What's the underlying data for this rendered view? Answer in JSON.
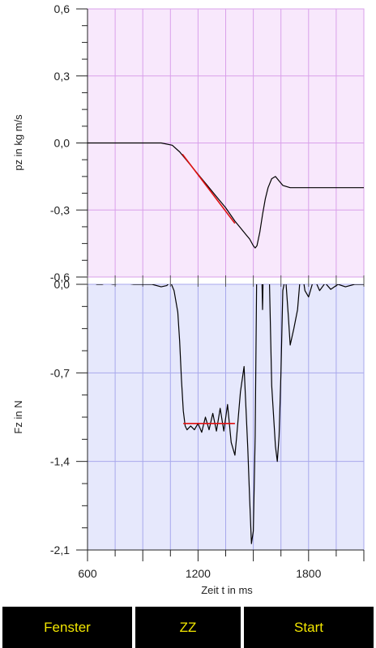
{
  "chart_data": [
    {
      "type": "line",
      "ylabel": "pz in kg m/s",
      "ylim": [
        -0.6,
        0.6
      ],
      "yticks": [
        "0,6",
        "0,3",
        "0,0",
        "-0,3",
        "-0,6"
      ],
      "background": "#f8e8fc",
      "grid_color": "#d9a0ea",
      "series": [
        {
          "color": "#000000",
          "x": [
            600,
            700,
            800,
            900,
            1000,
            1060,
            1100,
            1130,
            1180,
            1250,
            1300,
            1350,
            1400,
            1430,
            1460,
            1480,
            1500,
            1510,
            1520,
            1535,
            1550,
            1565,
            1580,
            1600,
            1620,
            1640,
            1660,
            1680,
            1700,
            1750,
            1800,
            1900,
            2000,
            2100
          ],
          "y": [
            0.0,
            0.0,
            0.0,
            0.0,
            0.0,
            -0.01,
            -0.04,
            -0.07,
            -0.12,
            -0.19,
            -0.24,
            -0.29,
            -0.35,
            -0.38,
            -0.41,
            -0.43,
            -0.46,
            -0.47,
            -0.46,
            -0.4,
            -0.32,
            -0.25,
            -0.2,
            -0.16,
            -0.15,
            -0.17,
            -0.19,
            -0.195,
            -0.2,
            -0.2,
            -0.2,
            -0.2,
            -0.2,
            -0.2
          ]
        },
        {
          "color": "#e01010",
          "x": [
            1115,
            1400
          ],
          "y": [
            -0.05,
            -0.36
          ]
        }
      ]
    },
    {
      "type": "line",
      "ylabel": "Fz in N",
      "xlabel": "Zeit t in ms",
      "ylim": [
        -2.1,
        0.0
      ],
      "xlim": [
        600,
        2100
      ],
      "yticks": [
        "0,0",
        "-0,7",
        "-1,4",
        "-2,1"
      ],
      "xticks": [
        {
          "value": 600,
          "label": "600"
        },
        {
          "value": 1200,
          "label": "1200"
        },
        {
          "value": 1800,
          "label": "1800"
        }
      ],
      "background": "#e6e8fc",
      "grid_color": "#a8a8ec",
      "series": [
        {
          "color": "#000000",
          "x": [
            600,
            620,
            650,
            680,
            700,
            740,
            800,
            850,
            900,
            950,
            1000,
            1030,
            1050,
            1070,
            1090,
            1100,
            1110,
            1120,
            1130,
            1140,
            1160,
            1180,
            1200,
            1220,
            1240,
            1260,
            1280,
            1300,
            1320,
            1340,
            1360,
            1380,
            1400,
            1410,
            1430,
            1450,
            1470,
            1480,
            1490,
            1500,
            1510,
            1520,
            1530,
            1540,
            1550,
            1560,
            1570,
            1585,
            1600,
            1620,
            1630,
            1640,
            1650,
            1660,
            1675,
            1690,
            1700,
            1720,
            1740,
            1760,
            1780,
            1800,
            1830,
            1860,
            1890,
            1920,
            1960,
            2000,
            2050,
            2100
          ],
          "y": [
            0.0,
            0.02,
            0.0,
            0.0,
            0.01,
            0.0,
            0.01,
            0.0,
            0.0,
            0.0,
            -0.02,
            -0.01,
            0.02,
            -0.05,
            -0.22,
            -0.45,
            -0.75,
            -1.0,
            -1.12,
            -1.15,
            -1.12,
            -1.15,
            -1.1,
            -1.17,
            -1.05,
            -1.15,
            -1.02,
            -1.16,
            -0.98,
            -1.16,
            -0.95,
            -1.25,
            -1.35,
            -1.2,
            -0.85,
            -0.65,
            -1.3,
            -1.7,
            -2.05,
            -1.95,
            -1.2,
            0.3,
            0.8,
            0.5,
            -0.2,
            0.6,
            0.9,
            0.2,
            -0.8,
            -1.28,
            -1.4,
            -1.2,
            -0.7,
            -0.05,
            0.06,
            -0.25,
            -0.48,
            -0.35,
            -0.2,
            0.15,
            -0.05,
            -0.1,
            0.05,
            -0.05,
            0.01,
            -0.04,
            0.0,
            -0.02,
            0.0,
            0.0
          ]
        },
        {
          "color": "#e01010",
          "x": [
            1120,
            1400
          ],
          "y": [
            -1.1,
            -1.1
          ]
        }
      ]
    }
  ],
  "buttons": {
    "fenster": "Fenster",
    "zz": "ZZ",
    "start": "Start"
  }
}
